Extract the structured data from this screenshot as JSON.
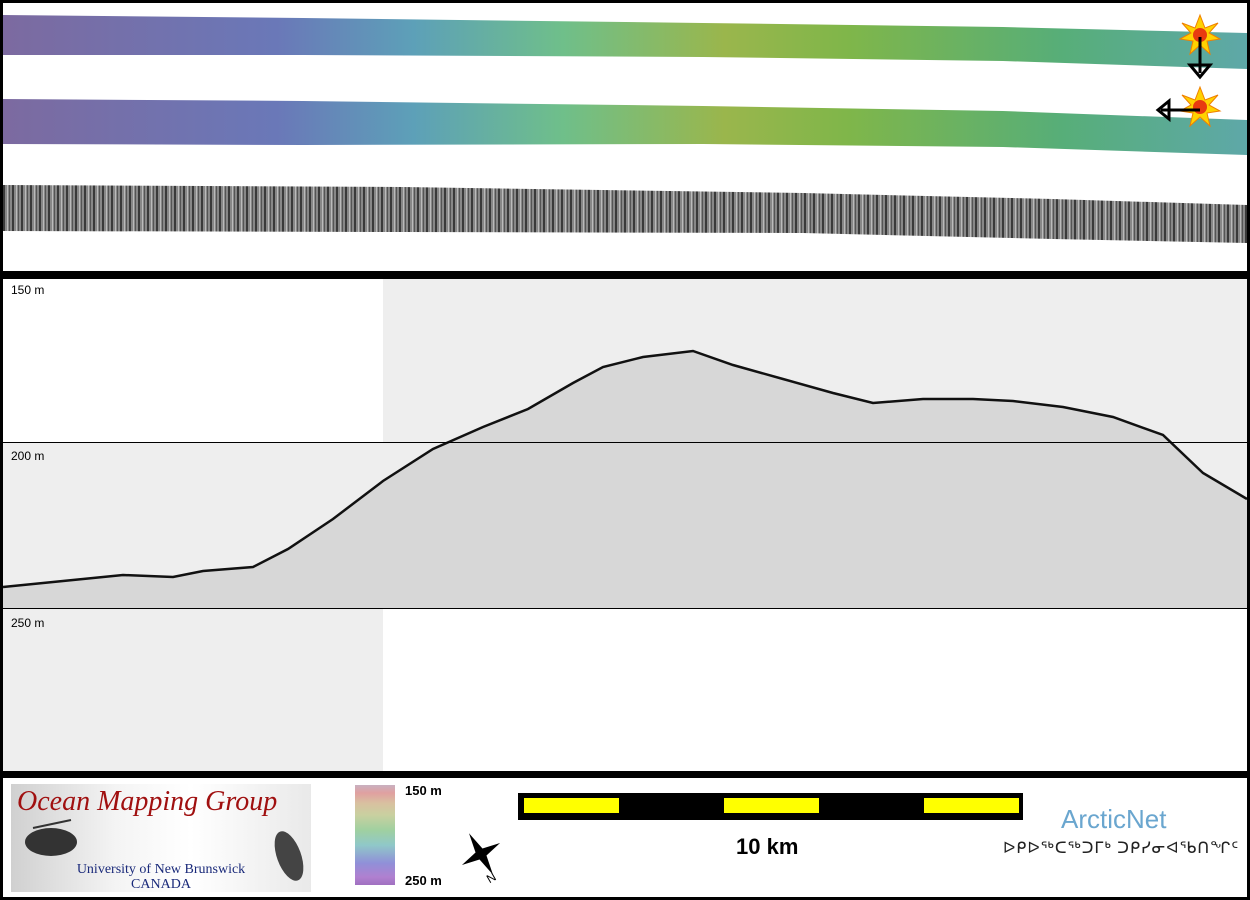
{
  "colors": {
    "panel_bg": "#ffffff",
    "frame": "#000000",
    "echo_bg": "#eeeeee",
    "scale_yellow": "#ffff00",
    "explosion_orange": "#ffb000",
    "brand_red": "#a01010",
    "brand_blue": "#1a2a7a",
    "arcticnet_blue": "#6aa6cf"
  },
  "icons": [
    "sun-burst-icon",
    "down-arrow-icon",
    "left-arrow-icon",
    "north-arrow-icon"
  ],
  "profile": {
    "depth_labels": [
      "150 m",
      "200 m",
      "250 m"
    ]
  },
  "footer": {
    "logo_title": "Ocean Mapping Group",
    "logo_university": "University of New Brunswick",
    "logo_country": "CANADA",
    "colorbar_top": "150 m",
    "colorbar_bottom": "250 m",
    "scale_label": "10 km",
    "partner_name": "ArcticNet",
    "partner_syllabics": "ᐅᑭᐅᖅᑕᖅᑐᒥᒃ ᑐᑭᓯᓂᐊᖃᑎᖏᑦ"
  }
}
